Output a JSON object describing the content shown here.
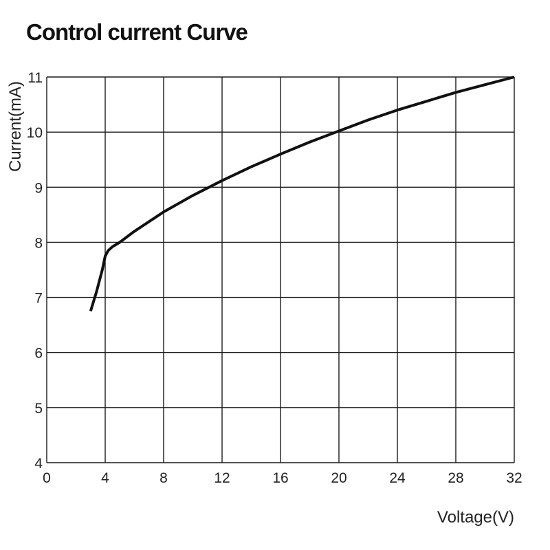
{
  "chart_data": {
    "type": "line",
    "title": "Control current Curve",
    "xlabel": "Voltage(V)",
    "ylabel": "Current(mA)",
    "xlim": [
      0,
      32
    ],
    "ylim": [
      4,
      11
    ],
    "x_ticks": [
      0,
      4,
      8,
      12,
      16,
      20,
      24,
      28,
      32
    ],
    "y_ticks": [
      4,
      5,
      6,
      7,
      8,
      9,
      10,
      11
    ],
    "grid": true,
    "legend": "none",
    "line_color": "#111111",
    "series": [
      {
        "x": [
          3.0,
          3.4,
          3.8,
          4.0,
          4.2,
          4.5,
          5.0,
          6.0,
          8.0,
          10.0,
          12.0,
          14.0,
          16.0,
          18.0,
          20.0,
          22.0,
          24.0,
          26.0,
          28.0,
          30.0,
          32.0
        ],
        "y": [
          6.75,
          7.1,
          7.5,
          7.75,
          7.85,
          7.92,
          8.0,
          8.2,
          8.55,
          8.85,
          9.12,
          9.37,
          9.6,
          9.82,
          10.02,
          10.22,
          10.4,
          10.56,
          10.72,
          10.86,
          11.0
        ]
      }
    ]
  }
}
